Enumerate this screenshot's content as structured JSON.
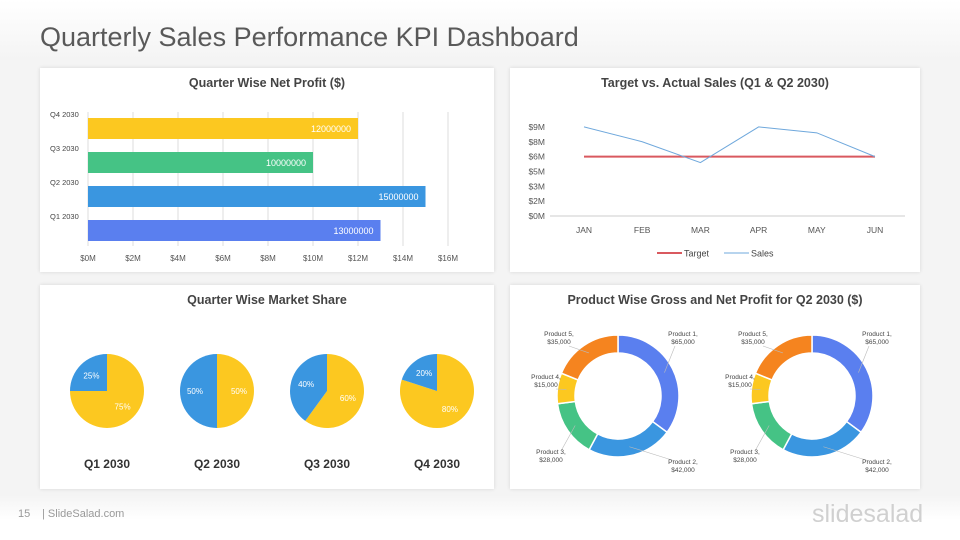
{
  "title": "Quarterly Sales Performance KPI Dashboard",
  "footer": {
    "page": "15",
    "site": "| SlideSalad.com",
    "logo": "slidesalad"
  },
  "colors": {
    "blue": "#5a7fef",
    "lightblue": "#3a96e0",
    "green": "#45c385",
    "yellow": "#fcc820",
    "orange": "#f5841f",
    "red": "#d9595f",
    "line": "#6fa8dc"
  },
  "chart_data": [
    {
      "type": "bar",
      "orientation": "horizontal",
      "title": "Quarter Wise Net Profit ($)",
      "categories": [
        "Q4 2030",
        "Q3 2030",
        "Q2 2030",
        "Q1 2030"
      ],
      "values": [
        12000000,
        10000000,
        15000000,
        13000000
      ],
      "bar_colors": [
        "#fcc820",
        "#45c385",
        "#3a96e0",
        "#5a7fef"
      ],
      "xticks": [
        "$0M",
        "$2M",
        "$4M",
        "$6M",
        "$8M",
        "$10M",
        "$12M",
        "$14M",
        "$16M"
      ],
      "xlim": [
        0,
        16000000
      ],
      "grid": true
    },
    {
      "type": "line",
      "title": "Target vs. Actual Sales (Q1 & Q2 2030)",
      "categories": [
        "JAN",
        "FEB",
        "MAR",
        "APR",
        "MAY",
        "JUN"
      ],
      "series": [
        {
          "name": "Target",
          "values": [
            6,
            6,
            6,
            6,
            6,
            6
          ],
          "color": "#d9595f"
        },
        {
          "name": "Sales",
          "values": [
            9,
            7.5,
            5.4,
            9,
            8.4,
            6
          ],
          "color": "#6fa8dc"
        }
      ],
      "yticks": [
        "$0M",
        "$2M",
        "$3M",
        "$5M",
        "$6M",
        "$8M",
        "$9M"
      ],
      "ylim": [
        0,
        9
      ],
      "unit": "$M",
      "legend": "bottom"
    },
    {
      "type": "pie",
      "title": "Quarter Wise Market Share",
      "pies": [
        {
          "label": "Q1 2030",
          "values": [
            75,
            25
          ],
          "labels": [
            "75%",
            "25%"
          ]
        },
        {
          "label": "Q2 2030",
          "values": [
            50,
            50
          ],
          "labels": [
            "50%",
            "50%"
          ]
        },
        {
          "label": "Q3 2030",
          "values": [
            60,
            40
          ],
          "labels": [
            "60%",
            "40%"
          ]
        },
        {
          "label": "Q4 2030",
          "values": [
            80,
            20
          ],
          "labels": [
            "80%",
            "20%"
          ]
        }
      ],
      "slice_colors": [
        "#fcc820",
        "#3a96e0"
      ]
    },
    {
      "type": "pie",
      "variant": "donut",
      "title": "Product Wise Gross and Net Profit for Q2 2030 ($)",
      "donuts": [
        {
          "categories": [
            "Product 1,",
            "Product 2,",
            "Product 3,",
            "Product 4,",
            "Product 5,"
          ],
          "values": [
            65000,
            42000,
            28000,
            15000,
            35000
          ],
          "value_labels": [
            "$65,000",
            "$42,000",
            "$28,000",
            "$15,000",
            "$35,000"
          ]
        },
        {
          "categories": [
            "Product 1,",
            "Product 2,",
            "Product 3,",
            "Product 4,",
            "Product 5,"
          ],
          "values": [
            65000,
            42000,
            28000,
            15000,
            35000
          ],
          "value_labels": [
            "$65,000",
            "$42,000",
            "$28,000",
            "$15,000",
            "$35,000"
          ]
        }
      ],
      "slice_colors": [
        "#5a7fef",
        "#3a96e0",
        "#45c385",
        "#fcc820",
        "#f5841f"
      ]
    }
  ]
}
